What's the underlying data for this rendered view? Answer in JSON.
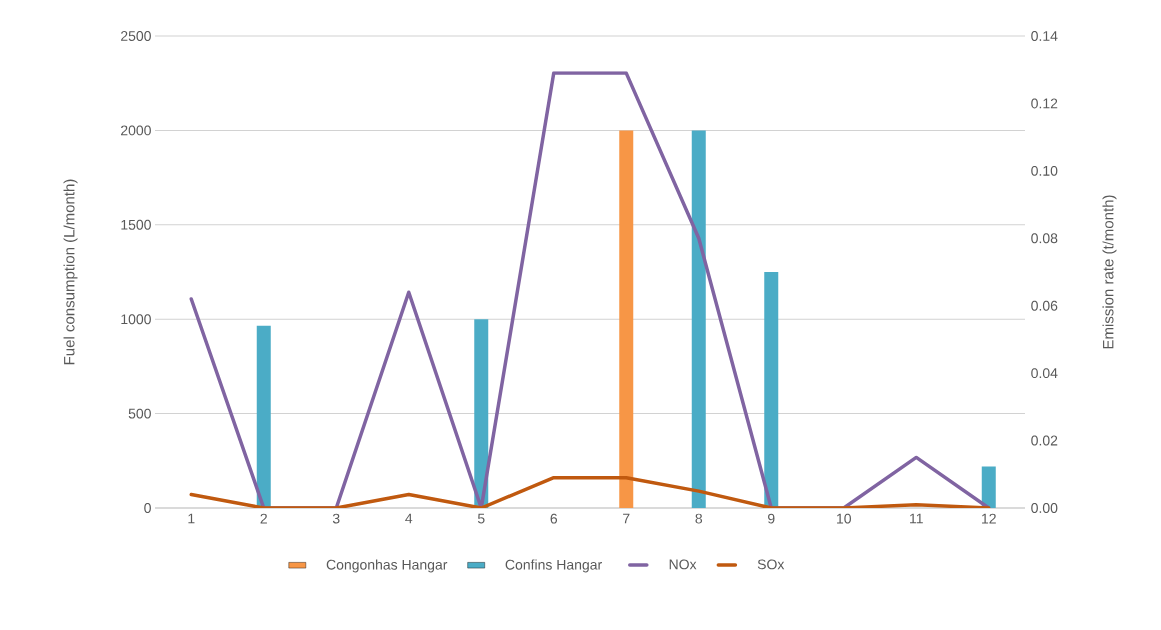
{
  "chart_data": {
    "type": "bar",
    "categories": [
      "1",
      "2",
      "3",
      "4",
      "5",
      "6",
      "7",
      "8",
      "9",
      "10",
      "11",
      "12"
    ],
    "series": [
      {
        "name": "Congonhas Hangar",
        "color": "#f79646",
        "values": [
          0,
          0,
          0,
          0,
          0,
          0,
          2000,
          0,
          0,
          0,
          0,
          0
        ]
      },
      {
        "name": "Confins Hangar",
        "color": "#4bacc6",
        "values": [
          0,
          965,
          0,
          0,
          1000,
          0,
          0,
          2000,
          1250,
          0,
          0,
          220
        ]
      },
      {
        "name": "NOx",
        "type": "line",
        "axis": "y2",
        "color": "#8064a2",
        "values": [
          0.062,
          0,
          0,
          0.064,
          0,
          0.129,
          0.129,
          0.08,
          0,
          0,
          0.015,
          0
        ]
      },
      {
        "name": "SOx",
        "type": "line",
        "axis": "y2",
        "color": "#c0590f",
        "values": [
          0.004,
          0,
          0,
          0.004,
          0,
          0.009,
          0.009,
          0.005,
          0,
          0,
          0.001,
          0
        ]
      }
    ],
    "ylabel": "Fuel consumption (L/month)",
    "y2label": "Emission rate  (t/month)",
    "ylim": [
      0,
      2500
    ],
    "yticks": [
      0,
      500,
      1000,
      1500,
      2000,
      2500
    ],
    "y2lim": [
      0,
      0.14
    ],
    "y2ticks": [
      {
        "value": 0,
        "label": "0.00"
      },
      {
        "value": 0.02,
        "label": "0.02"
      },
      {
        "value": 0.04,
        "label": "0.04"
      },
      {
        "value": 0.06,
        "label": "0.06"
      },
      {
        "value": 0.08,
        "label": "0.08"
      },
      {
        "value": 0.1,
        "label": "0.10"
      },
      {
        "value": 0.12,
        "label": "0.12"
      },
      {
        "value": 0.14,
        "label": "0.14"
      }
    ],
    "grid": "y",
    "legend": "bottom",
    "line_style": "solid",
    "marker": "none"
  }
}
